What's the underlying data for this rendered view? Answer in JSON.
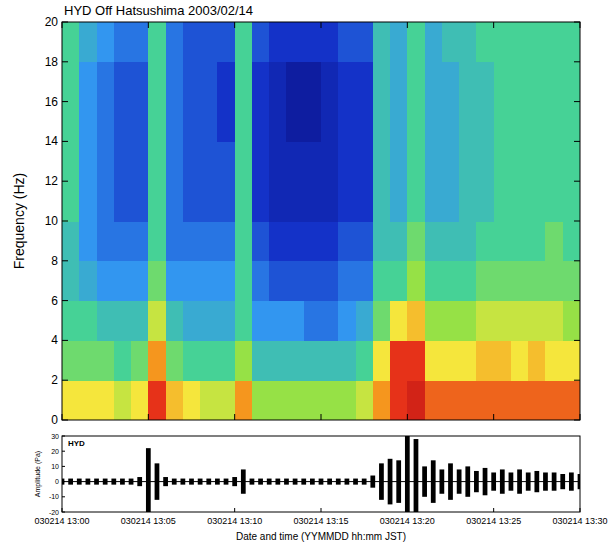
{
  "chart_data": [
    {
      "type": "heatmap",
      "title": "HYD Off Hatsushima 2003/02/14",
      "y_label": "Frequency (Hz)",
      "xlim": [
        0,
        30
      ],
      "xticks": [
        0,
        5,
        10,
        15,
        20,
        25,
        30
      ],
      "ylim": [
        0,
        20
      ],
      "yticks": [
        0,
        2,
        4,
        6,
        8,
        10,
        12,
        14,
        16,
        18,
        20
      ],
      "tick_labels": "y",
      "x_bins": [
        0,
        1,
        2,
        3,
        4,
        5,
        6,
        7,
        8,
        9,
        10,
        11,
        12,
        13,
        14,
        15,
        16,
        17,
        18,
        19,
        20,
        21,
        22,
        23,
        24,
        25,
        26,
        27,
        28,
        29,
        30
      ],
      "y_bins": [
        0,
        2,
        4,
        6,
        8,
        10,
        12,
        14,
        16,
        18,
        20
      ],
      "color_range": [
        0,
        10
      ],
      "cells": [
        [
          7,
          5.5,
          5,
          4.5,
          4.5,
          5,
          5,
          5,
          5,
          5
        ],
        [
          7,
          5.5,
          5,
          4,
          3.5,
          3.5,
          3.5,
          3.5,
          3.5,
          4
        ],
        [
          7,
          5.5,
          4.5,
          3.5,
          3,
          3,
          3,
          3,
          3,
          3.5
        ],
        [
          6.5,
          5,
          4.5,
          3.5,
          3,
          2.5,
          2.5,
          2.5,
          2.5,
          3
        ],
        [
          7,
          5.5,
          4.5,
          3.5,
          3,
          2.5,
          2.5,
          2.5,
          2.5,
          3
        ],
        [
          9,
          8,
          6.5,
          5.5,
          5,
          5,
          5,
          5,
          5,
          5
        ],
        [
          7.5,
          5.5,
          4.5,
          3.5,
          3,
          3,
          3,
          3,
          3,
          3
        ],
        [
          7,
          5,
          4,
          3.5,
          3,
          2.5,
          2.5,
          2.5,
          2.5,
          2.5
        ],
        [
          6.5,
          5,
          4,
          3.5,
          3,
          2.5,
          2.5,
          2.5,
          2.5,
          2.5
        ],
        [
          6.5,
          5,
          4,
          3.5,
          3,
          2.5,
          2.5,
          2,
          2,
          2.5
        ],
        [
          8,
          6,
          5,
          5,
          5,
          5,
          5,
          5,
          5,
          5
        ],
        [
          6,
          4.5,
          3.5,
          3,
          2.5,
          2,
          2,
          2,
          2,
          2.5
        ],
        [
          6,
          4.5,
          3.5,
          2.5,
          2,
          1.5,
          1.5,
          1.5,
          1.5,
          2
        ],
        [
          6,
          4.5,
          3.5,
          2.5,
          2,
          1.5,
          1.5,
          1,
          1,
          2
        ],
        [
          6,
          4.5,
          3,
          2.5,
          2,
          1.5,
          1.5,
          1,
          1,
          2
        ],
        [
          6,
          4.5,
          3,
          2.5,
          2,
          1.5,
          1.5,
          1.5,
          1.5,
          2
        ],
        [
          6,
          4.5,
          3.5,
          3,
          2.5,
          2,
          2,
          2,
          2,
          2.5
        ],
        [
          6.5,
          5,
          4,
          3,
          2.5,
          2,
          2,
          2,
          2,
          2.5
        ],
        [
          8,
          7,
          5.5,
          5,
          4.5,
          4.5,
          4.5,
          4.5,
          4.5,
          4.5
        ],
        [
          9,
          9,
          7,
          5,
          4.5,
          4,
          4,
          4,
          4,
          4
        ],
        [
          9.5,
          9,
          7.5,
          6,
          5.5,
          5,
          5,
          5,
          5,
          5
        ],
        [
          8.5,
          7,
          6,
          5,
          4.5,
          4,
          4,
          4,
          4,
          4
        ],
        [
          8.5,
          7,
          6,
          5,
          4.5,
          4,
          4,
          4,
          4,
          4.5
        ],
        [
          8.5,
          7,
          6,
          5,
          4.5,
          4.5,
          4.5,
          4.5,
          4.5,
          4.5
        ],
        [
          8.5,
          7.5,
          6.5,
          5.5,
          5,
          4.5,
          4.5,
          4.5,
          4.5,
          5
        ],
        [
          8.5,
          7.5,
          6.5,
          5.5,
          5,
          5,
          5,
          5,
          5,
          5
        ],
        [
          8.5,
          7,
          6.5,
          5.5,
          5,
          5,
          5,
          5,
          5,
          5
        ],
        [
          8.5,
          7.5,
          6.5,
          5.5,
          5,
          5,
          5,
          5,
          5,
          5
        ],
        [
          8.5,
          7,
          6.5,
          5.5,
          5.5,
          5,
          5,
          5,
          5,
          5
        ],
        [
          8.5,
          7,
          6,
          5.5,
          5,
          5,
          5,
          5,
          5,
          5
        ]
      ]
    },
    {
      "type": "waveform",
      "label": "HYD",
      "x_label": "Date and time (YYMMDD hh:mm JST)",
      "y_label": "Amplitude (Pa)",
      "color": "#000000",
      "xlim": [
        0,
        30
      ],
      "xticks": [
        {
          "value": 0,
          "label": "030214 13:00"
        },
        {
          "value": 5,
          "label": "030214 13:05"
        },
        {
          "value": 10,
          "label": "030214 13:10"
        },
        {
          "value": 15,
          "label": "030214 13:15"
        },
        {
          "value": 20,
          "label": "030214 13:20"
        },
        {
          "value": 25,
          "label": "030214 13:25"
        },
        {
          "value": 30,
          "label": "030214 13:30"
        }
      ],
      "ylim": [
        -20,
        30
      ],
      "yticks": [
        -20,
        -10,
        0,
        10,
        20,
        30
      ],
      "x": [
        0,
        0.5,
        1,
        1.5,
        2,
        2.5,
        3,
        3.5,
        4,
        4.5,
        5,
        5.5,
        6,
        6.5,
        7,
        7.5,
        8,
        8.5,
        9,
        9.5,
        10,
        10.5,
        11,
        11.5,
        12,
        12.5,
        13,
        13.5,
        14,
        14.5,
        15,
        15.5,
        16,
        16.5,
        17,
        17.5,
        18,
        18.5,
        19,
        19.5,
        20,
        20.5,
        21,
        21.5,
        22,
        22.5,
        23,
        23.5,
        24,
        24.5,
        25,
        25.5,
        26,
        26.5,
        27,
        27.5,
        28,
        28.5,
        29,
        29.5,
        30
      ],
      "values": [
        2,
        2,
        2,
        2,
        2,
        2,
        2,
        2,
        2,
        3,
        22,
        12,
        3,
        2,
        2,
        2,
        2,
        2,
        2,
        2,
        3,
        8,
        2,
        2,
        2,
        2,
        2,
        2,
        2,
        2,
        2,
        2,
        2,
        2,
        2,
        2,
        4,
        12,
        15,
        14,
        30,
        28,
        10,
        14,
        8,
        12,
        8,
        10,
        7,
        9,
        6,
        8,
        6,
        8,
        6,
        7,
        6,
        6,
        5,
        6,
        5
      ]
    }
  ]
}
